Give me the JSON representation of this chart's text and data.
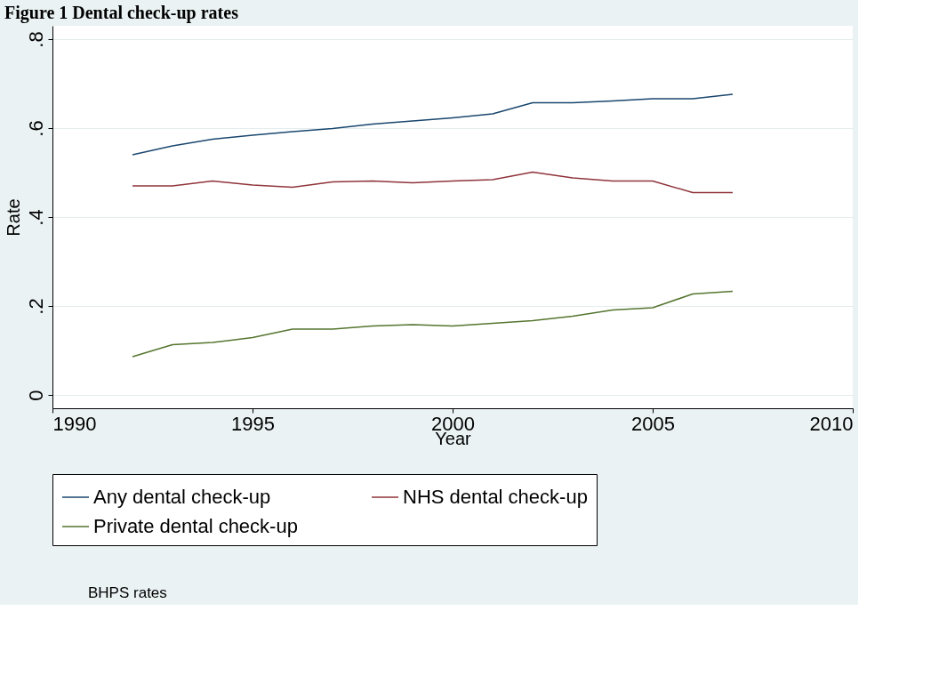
{
  "chart_data": {
    "type": "line",
    "title": "Figure 1 Dental check-up rates",
    "xlabel": "Year",
    "ylabel": "Rate",
    "x": [
      1992,
      1993,
      1994,
      1995,
      1996,
      1997,
      1998,
      1999,
      2000,
      2001,
      2002,
      2003,
      2004,
      2005,
      2006,
      2007
    ],
    "series": [
      {
        "name": "Any dental check-up",
        "color": "#1a476f",
        "values": [
          0.54,
          0.56,
          0.575,
          0.584,
          0.592,
          0.599,
          0.609,
          0.616,
          0.623,
          0.632,
          0.657,
          0.657,
          0.661,
          0.666,
          0.666,
          0.676
        ]
      },
      {
        "name": "NHS dental check-up",
        "color": "#90353b",
        "values": [
          0.47,
          0.47,
          0.481,
          0.472,
          0.467,
          0.479,
          0.481,
          0.477,
          0.481,
          0.484,
          0.501,
          0.488,
          0.481,
          0.481,
          0.455,
          0.455
        ]
      },
      {
        "name": "Private dental check-up",
        "color": "#55752f",
        "values": [
          0.086,
          0.113,
          0.118,
          0.129,
          0.148,
          0.148,
          0.155,
          0.158,
          0.155,
          0.161,
          0.167,
          0.177,
          0.191,
          0.196,
          0.227,
          0.233
        ]
      }
    ],
    "xlim": [
      1990,
      2010
    ],
    "xticks": [
      1990,
      1995,
      2000,
      2005,
      2010
    ],
    "ylim": [
      -0.03,
      0.83
    ],
    "yticks": [
      {
        "value": 0,
        "label": "0"
      },
      {
        "value": 0.2,
        "label": ".2"
      },
      {
        "value": 0.4,
        "label": ".4"
      },
      {
        "value": 0.6,
        "label": ".6"
      },
      {
        "value": 0.8,
        "label": ".8"
      }
    ],
    "grid": "y",
    "legend": "bottom",
    "marker": "none",
    "line_style": "solid",
    "annotations": [
      "BHPS rates"
    ]
  }
}
